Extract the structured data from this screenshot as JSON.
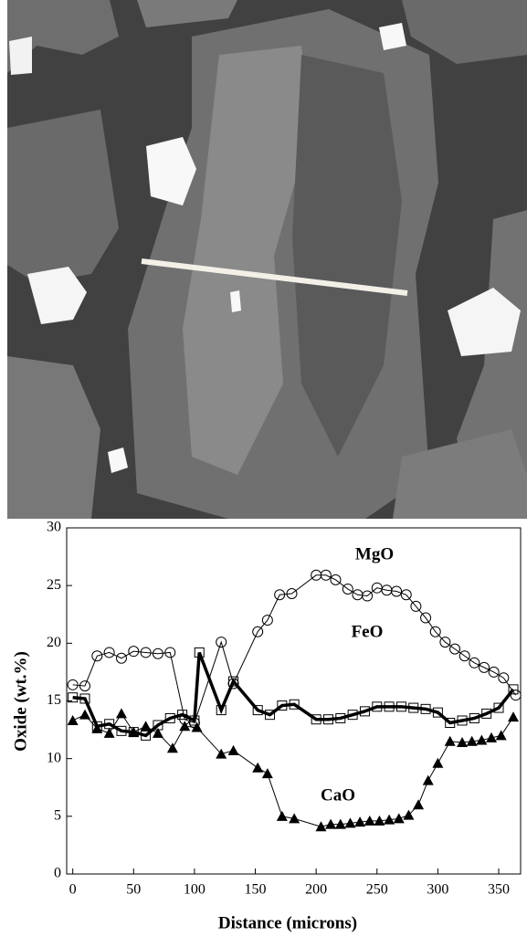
{
  "chart_data": {
    "type": "line",
    "x_label": "Distance (microns)",
    "y_label": "Oxide (wt.%)",
    "xlim": [
      -5,
      368
    ],
    "ylim": [
      0,
      30
    ],
    "xticks": [
      0,
      50,
      100,
      150,
      200,
      250,
      300,
      350
    ],
    "yticks": [
      0,
      5,
      10,
      15,
      20,
      25,
      30
    ],
    "series": [
      {
        "name": "MgO",
        "marker": "open-circle",
        "color": "#000000",
        "x": [
          0,
          10,
          20,
          30,
          40,
          50,
          60,
          70,
          80,
          92,
          100,
          122,
          132,
          152,
          160,
          170,
          180,
          200,
          208,
          216,
          226,
          234,
          242,
          250,
          258,
          266,
          274,
          282,
          290,
          298,
          306,
          314,
          322,
          330,
          338,
          346,
          354,
          364
        ],
        "values": [
          16.4,
          16.3,
          18.9,
          19.2,
          18.7,
          19.3,
          19.2,
          19.1,
          19.2,
          13.4,
          13.1,
          20.1,
          16.5,
          21.0,
          22.0,
          24.2,
          24.3,
          25.9,
          25.9,
          25.5,
          24.7,
          24.2,
          24.1,
          24.8,
          24.6,
          24.5,
          24.2,
          23.2,
          22.2,
          21.0,
          20.1,
          19.5,
          18.9,
          18.3,
          17.9,
          17.5,
          17.0,
          15.5
        ]
      },
      {
        "name": "FeO",
        "marker": "open-square",
        "color": "#000000",
        "x": [
          0,
          10,
          20,
          30,
          40,
          50,
          60,
          70,
          80,
          90,
          100,
          104,
          122,
          132,
          152,
          162,
          172,
          182,
          200,
          210,
          220,
          230,
          240,
          250,
          260,
          270,
          280,
          290,
          300,
          310,
          320,
          330,
          340,
          350,
          362
        ],
        "values": [
          15.3,
          15.2,
          12.8,
          13.0,
          12.4,
          12.3,
          12.0,
          12.9,
          13.5,
          13.8,
          13.3,
          19.2,
          14.2,
          16.7,
          14.2,
          13.8,
          14.6,
          14.7,
          13.4,
          13.4,
          13.5,
          13.8,
          14.1,
          14.5,
          14.5,
          14.5,
          14.4,
          14.3,
          14.0,
          13.1,
          13.3,
          13.5,
          13.9,
          14.4,
          16.0
        ]
      },
      {
        "name": "CaO",
        "marker": "filled-triangle",
        "color": "#000000",
        "x": [
          0,
          10,
          20,
          30,
          40,
          50,
          60,
          70,
          82,
          92,
          102,
          122,
          132,
          152,
          160,
          172,
          182,
          204,
          212,
          220,
          228,
          236,
          244,
          252,
          260,
          268,
          276,
          284,
          292,
          300,
          310,
          320,
          328,
          336,
          344,
          352,
          362
        ],
        "values": [
          13.3,
          13.8,
          12.6,
          12.2,
          13.9,
          12.3,
          12.8,
          12.2,
          10.9,
          12.8,
          12.7,
          10.4,
          10.7,
          9.2,
          8.7,
          5.0,
          4.8,
          4.1,
          4.3,
          4.3,
          4.4,
          4.5,
          4.6,
          4.6,
          4.7,
          4.8,
          5.1,
          6.0,
          8.1,
          9.6,
          11.5,
          11.4,
          11.5,
          11.6,
          11.8,
          12.0,
          13.6
        ]
      }
    ]
  }
}
